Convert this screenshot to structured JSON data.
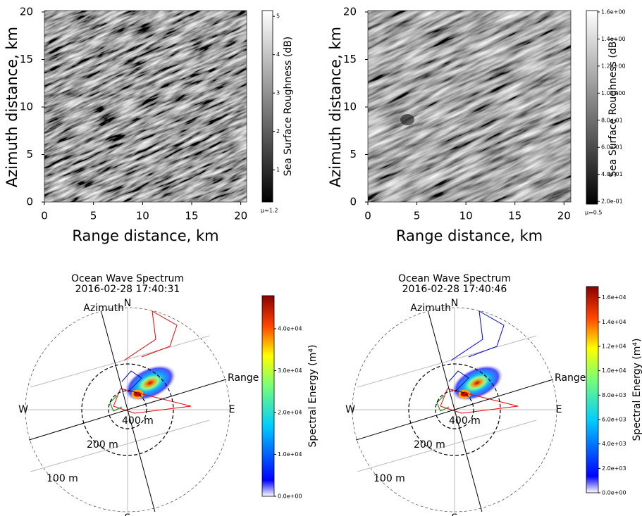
{
  "chart_data": [
    {
      "type": "image",
      "xlabel": "Range distance, km",
      "ylabel": "Azimuth distance, km",
      "xlim": [
        0,
        20.6
      ],
      "xticks": [
        0,
        5,
        10,
        15,
        20
      ],
      "ylim": [
        0,
        20
      ],
      "yticks": [
        0,
        5,
        10,
        15,
        20
      ],
      "colorbar": {
        "label": "Sea Surface Roughness (dB)",
        "lim": [
          0.16,
          5.15
        ],
        "ticks": [
          1,
          2,
          3,
          4,
          5
        ],
        "mu_label": "μ=1.2"
      }
    },
    {
      "type": "image",
      "xlabel": "Range distance, km",
      "ylabel": "Azimuth distance, km",
      "xlim": [
        0,
        20.7
      ],
      "xticks": [
        0,
        5,
        10,
        15,
        20
      ],
      "ylim": [
        0,
        20
      ],
      "yticks": [
        0,
        5,
        10,
        15,
        20
      ],
      "colorbar": {
        "label": "Sea Surface Roughness (dB)",
        "lim": [
          0.18,
          1.61
        ],
        "ticks": [
          {
            "value": 0.2,
            "label": "2.0e-01"
          },
          {
            "value": 0.4,
            "label": "4.0e-01"
          },
          {
            "value": 0.6,
            "label": "6.0e-01"
          },
          {
            "value": 0.8,
            "label": "8.0e-01"
          },
          {
            "value": 1.0,
            "label": "1.0e+00"
          },
          {
            "value": 1.2,
            "label": "1.2e+00"
          },
          {
            "value": 1.4,
            "label": "1.4e+00"
          },
          {
            "value": 1.6,
            "label": "1.6e+00"
          }
        ],
        "mu_label": "μ=0.5"
      }
    },
    {
      "type": "polar",
      "title": "Ocean Wave Spectrum",
      "subtitle": "2016-02-28 17:40:31",
      "directions": [
        "N",
        "E",
        "S",
        "W"
      ],
      "axis_labels": [
        "Azimuth",
        "Range"
      ],
      "ring_labels": [
        "400 m",
        "200 m",
        "100 m"
      ],
      "colorbar": {
        "label": "Spectral Energy (m⁴)",
        "lim": [
          0,
          47900
        ],
        "ticks": [
          {
            "value": 0,
            "label": "0.0e+00"
          },
          {
            "value": 10000,
            "label": "1.0e+04"
          },
          {
            "value": 20000,
            "label": "2.0e+04"
          },
          {
            "value": 30000,
            "label": "3.0e+04"
          },
          {
            "value": 40000,
            "label": "4.0e+04"
          }
        ]
      }
    },
    {
      "type": "polar",
      "title": "Ocean Wave Spectrum",
      "subtitle": "2016-02-28 17:40:46",
      "directions": [
        "N",
        "E",
        "S",
        "W"
      ],
      "axis_labels": [
        "Azimuth",
        "Range"
      ],
      "ring_labels": [
        "400 m",
        "200 m",
        "100 m"
      ],
      "colorbar": {
        "label": "Spectral Energy (m⁴)",
        "lim": [
          0,
          16900
        ],
        "ticks": [
          {
            "value": 0,
            "label": "0.0e+00"
          },
          {
            "value": 2000,
            "label": "2.0e+03"
          },
          {
            "value": 4000,
            "label": "4.0e+03"
          },
          {
            "value": 6000,
            "label": "6.0e+03"
          },
          {
            "value": 8000,
            "label": "8.0e+03"
          },
          {
            "value": 10000,
            "label": "1.0e+04"
          },
          {
            "value": 12000,
            "label": "1.2e+04"
          },
          {
            "value": 14000,
            "label": "1.4e+04"
          },
          {
            "value": 16000,
            "label": "1.6e+04"
          }
        ]
      }
    }
  ]
}
